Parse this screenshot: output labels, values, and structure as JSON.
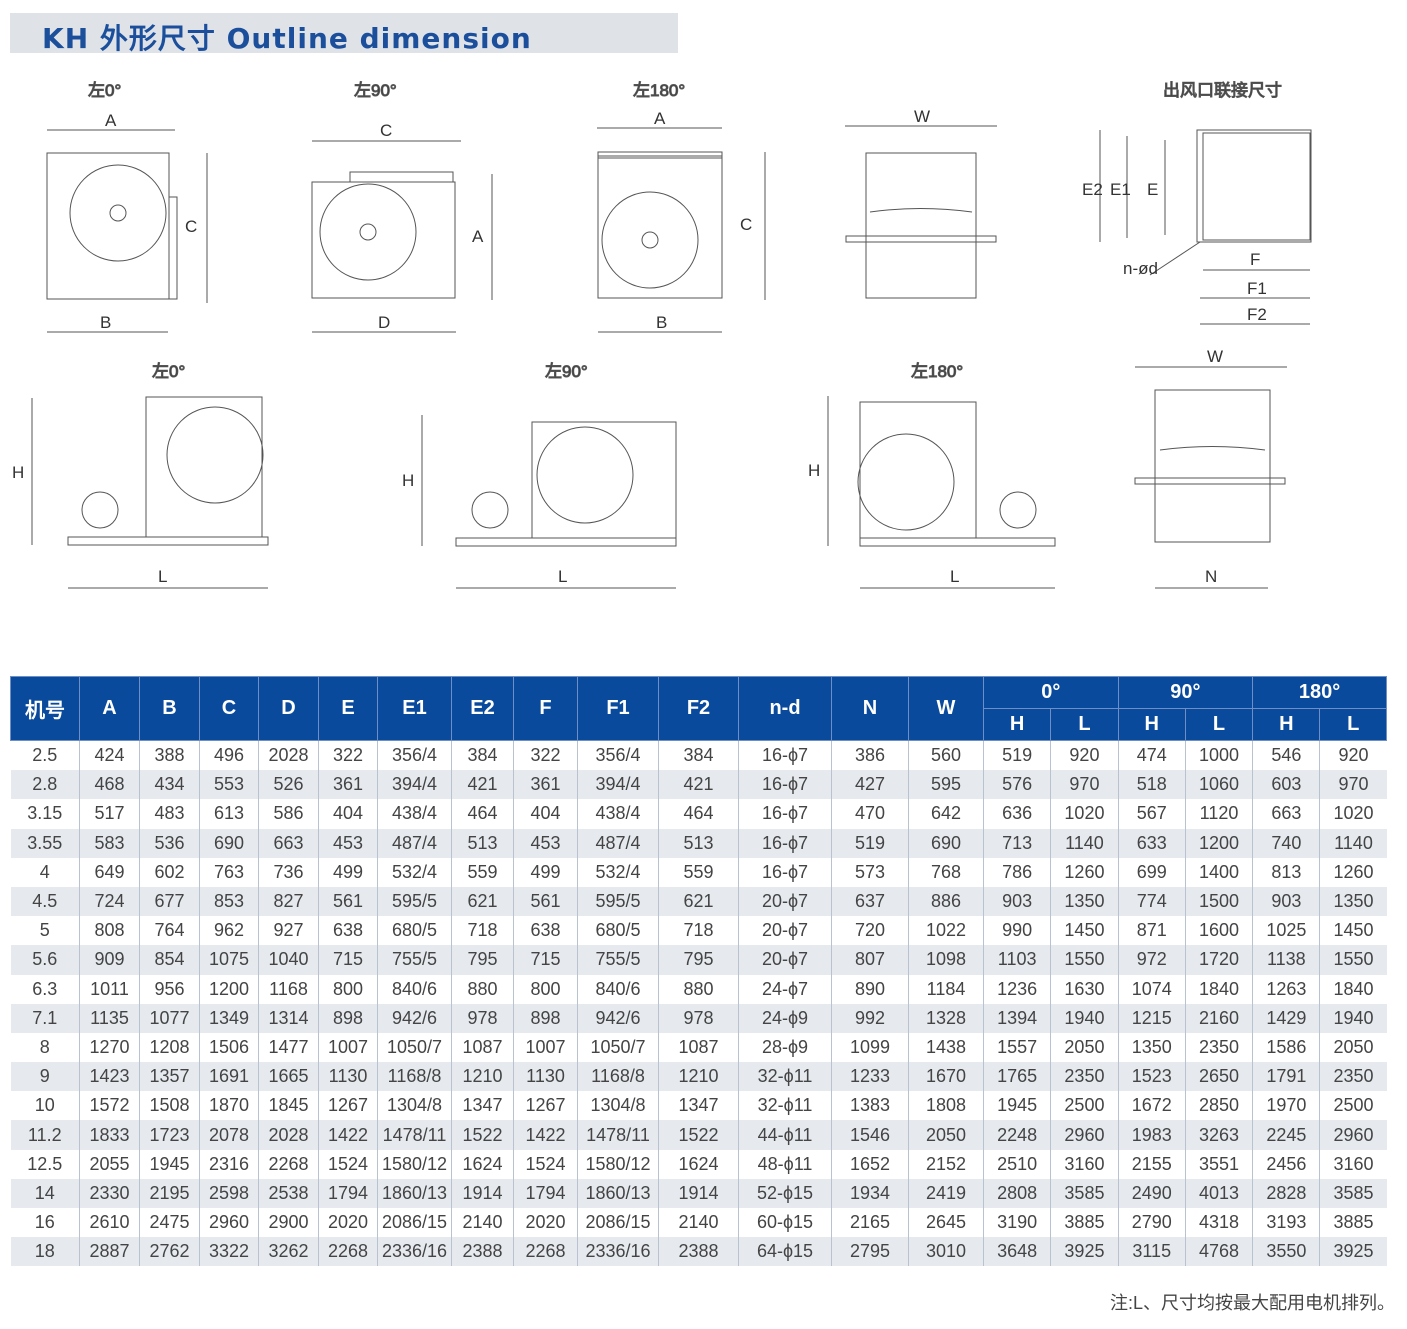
{
  "title": "KH 外形尺寸 Outline dimension",
  "drawings": {
    "top_views": [
      "左0°",
      "左90°",
      "左180°"
    ],
    "side_view_label": "W",
    "outlet_title": "出风口联接尺寸",
    "outlet_labels": {
      "e2": "E2",
      "e1": "E1",
      "e": "E",
      "nd": "n-ød",
      "f": "F",
      "f1": "F1",
      "f2": "F2"
    },
    "top_dims": [
      {
        "top": "A",
        "bottom": "B",
        "side": "C"
      },
      {
        "top": "C",
        "bottom": "D",
        "side": "A"
      },
      {
        "top": "A",
        "bottom": "B",
        "side": "C"
      }
    ],
    "motor_views": [
      "左0°",
      "左90°",
      "左180°"
    ],
    "motor_dims": {
      "h": "H",
      "l": "L"
    },
    "end_view": {
      "top": "W",
      "bottom": "N"
    }
  },
  "table": {
    "headers": [
      "机号",
      "A",
      "B",
      "C",
      "D",
      "E",
      "E1",
      "E2",
      "F",
      "F1",
      "F2",
      "n-d",
      "N",
      "W"
    ],
    "groups": [
      "0°",
      "90°",
      "180°"
    ],
    "sub": [
      "H",
      "L"
    ],
    "rows": [
      [
        "2.5",
        "424",
        "388",
        "496",
        "2028",
        "322",
        "356/4",
        "384",
        "322",
        "356/4",
        "384",
        "16-ϕ7",
        "386",
        "560",
        "519",
        "920",
        "474",
        "1000",
        "546",
        "920"
      ],
      [
        "2.8",
        "468",
        "434",
        "553",
        "526",
        "361",
        "394/4",
        "421",
        "361",
        "394/4",
        "421",
        "16-ϕ7",
        "427",
        "595",
        "576",
        "970",
        "518",
        "1060",
        "603",
        "970"
      ],
      [
        "3.15",
        "517",
        "483",
        "613",
        "586",
        "404",
        "438/4",
        "464",
        "404",
        "438/4",
        "464",
        "16-ϕ7",
        "470",
        "642",
        "636",
        "1020",
        "567",
        "1120",
        "663",
        "1020"
      ],
      [
        "3.55",
        "583",
        "536",
        "690",
        "663",
        "453",
        "487/4",
        "513",
        "453",
        "487/4",
        "513",
        "16-ϕ7",
        "519",
        "690",
        "713",
        "1140",
        "633",
        "1200",
        "740",
        "1140"
      ],
      [
        "4",
        "649",
        "602",
        "763",
        "736",
        "499",
        "532/4",
        "559",
        "499",
        "532/4",
        "559",
        "16-ϕ7",
        "573",
        "768",
        "786",
        "1260",
        "699",
        "1400",
        "813",
        "1260"
      ],
      [
        "4.5",
        "724",
        "677",
        "853",
        "827",
        "561",
        "595/5",
        "621",
        "561",
        "595/5",
        "621",
        "20-ϕ7",
        "637",
        "886",
        "903",
        "1350",
        "774",
        "1500",
        "903",
        "1350"
      ],
      [
        "5",
        "808",
        "764",
        "962",
        "927",
        "638",
        "680/5",
        "718",
        "638",
        "680/5",
        "718",
        "20-ϕ7",
        "720",
        "1022",
        "990",
        "1450",
        "871",
        "1600",
        "1025",
        "1450"
      ],
      [
        "5.6",
        "909",
        "854",
        "1075",
        "1040",
        "715",
        "755/5",
        "795",
        "715",
        "755/5",
        "795",
        "20-ϕ7",
        "807",
        "1098",
        "1103",
        "1550",
        "972",
        "1720",
        "1138",
        "1550"
      ],
      [
        "6.3",
        "1011",
        "956",
        "1200",
        "1168",
        "800",
        "840/6",
        "880",
        "800",
        "840/6",
        "880",
        "24-ϕ7",
        "890",
        "1184",
        "1236",
        "1630",
        "1074",
        "1840",
        "1263",
        "1840"
      ],
      [
        "7.1",
        "1135",
        "1077",
        "1349",
        "1314",
        "898",
        "942/6",
        "978",
        "898",
        "942/6",
        "978",
        "24-ϕ9",
        "992",
        "1328",
        "1394",
        "1940",
        "1215",
        "2160",
        "1429",
        "1940"
      ],
      [
        "8",
        "1270",
        "1208",
        "1506",
        "1477",
        "1007",
        "1050/7",
        "1087",
        "1007",
        "1050/7",
        "1087",
        "28-ϕ9",
        "1099",
        "1438",
        "1557",
        "2050",
        "1350",
        "2350",
        "1586",
        "2050"
      ],
      [
        "9",
        "1423",
        "1357",
        "1691",
        "1665",
        "1130",
        "1168/8",
        "1210",
        "1130",
        "1168/8",
        "1210",
        "32-ϕ11",
        "1233",
        "1670",
        "1765",
        "2350",
        "1523",
        "2650",
        "1791",
        "2350"
      ],
      [
        "10",
        "1572",
        "1508",
        "1870",
        "1845",
        "1267",
        "1304/8",
        "1347",
        "1267",
        "1304/8",
        "1347",
        "32-ϕ11",
        "1383",
        "1808",
        "1945",
        "2500",
        "1672",
        "2850",
        "1970",
        "2500"
      ],
      [
        "11.2",
        "1833",
        "1723",
        "2078",
        "2028",
        "1422",
        "1478/11",
        "1522",
        "1422",
        "1478/11",
        "1522",
        "44-ϕ11",
        "1546",
        "2050",
        "2248",
        "2960",
        "1983",
        "3263",
        "2245",
        "2960"
      ],
      [
        "12.5",
        "2055",
        "1945",
        "2316",
        "2268",
        "1524",
        "1580/12",
        "1624",
        "1524",
        "1580/12",
        "1624",
        "48-ϕ11",
        "1652",
        "2152",
        "2510",
        "3160",
        "2155",
        "3551",
        "2456",
        "3160"
      ],
      [
        "14",
        "2330",
        "2195",
        "2598",
        "2538",
        "1794",
        "1860/13",
        "1914",
        "1794",
        "1860/13",
        "1914",
        "52-ϕ15",
        "1934",
        "2419",
        "2808",
        "3585",
        "2490",
        "4013",
        "2828",
        "3585"
      ],
      [
        "16",
        "2610",
        "2475",
        "2960",
        "2900",
        "2020",
        "2086/15",
        "2140",
        "2020",
        "2086/15",
        "2140",
        "60-ϕ15",
        "2165",
        "2645",
        "3190",
        "3885",
        "2790",
        "4318",
        "3193",
        "3885"
      ],
      [
        "18",
        "2887",
        "2762",
        "3322",
        "3262",
        "2268",
        "2336/16",
        "2388",
        "2268",
        "2336/16",
        "2388",
        "64-ϕ15",
        "2795",
        "3010",
        "3648",
        "3925",
        "3115",
        "4768",
        "3550",
        "3925"
      ]
    ]
  },
  "note": "注:L、尺寸均按最大配用电机排列。"
}
